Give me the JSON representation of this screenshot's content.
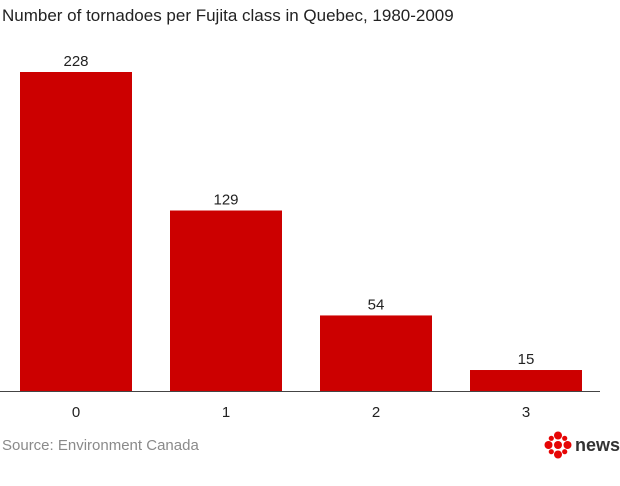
{
  "chart_data": {
    "type": "bar",
    "title": "Number of tornadoes per Fujita class in Quebec, 1980-2009",
    "categories": [
      "0",
      "1",
      "2",
      "3"
    ],
    "values": [
      228,
      129,
      54,
      15
    ],
    "data_labels": [
      "228",
      "129",
      "54",
      "15"
    ],
    "xlabel": "",
    "ylabel": "",
    "ylim": [
      0,
      240
    ],
    "grid": false,
    "legend": "none",
    "bar_color": "#cc0000"
  },
  "source": "Source: Environment Canada",
  "brand": {
    "word": "news",
    "icon": "cbc-gem-icon",
    "color": "#e60505"
  }
}
